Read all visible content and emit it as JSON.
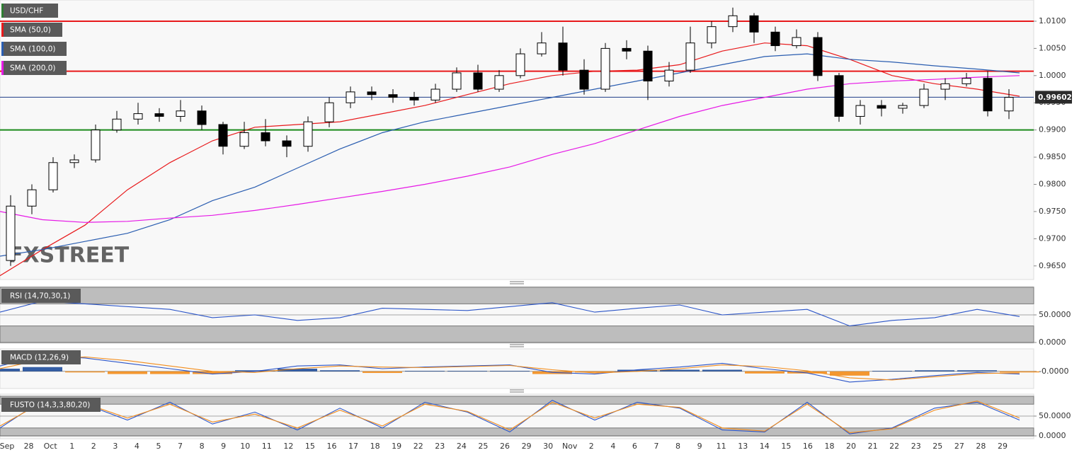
{
  "chart_data": [
    {
      "type": "candlestick",
      "watermark": "FXSTREET",
      "series": [
        {
          "name": "USD/CHF",
          "color": "#2e7d32",
          "open": [
            0.966,
            0.976,
            0.979,
            0.984,
            0.9845,
            0.99,
            0.992,
            0.993,
            0.9925,
            0.9935,
            0.991,
            0.987,
            0.9895,
            0.988,
            0.987,
            0.9915,
            0.995,
            0.997,
            0.9965,
            0.996,
            0.9955,
            0.9975,
            1.0005,
            0.9975,
            1.0,
            1.004,
            1.006,
            1.001,
            0.9975,
            1.005,
            1.0045,
            0.999,
            1.001,
            1.006,
            1.009,
            1.011,
            1.008,
            1.0055,
            1.007,
            1.0,
            0.9925,
            0.9945,
            0.994,
            0.9945,
            0.9975,
            0.9985,
            0.9995,
            0.9935
          ],
          "high": [
            0.978,
            0.98,
            0.985,
            0.9855,
            0.991,
            0.9935,
            0.995,
            0.994,
            0.9955,
            0.9945,
            0.9915,
            0.9915,
            0.992,
            0.989,
            0.9925,
            0.996,
            0.998,
            0.998,
            0.9975,
            0.997,
            0.9985,
            1.0015,
            1.002,
            1.001,
            1.005,
            1.008,
            1.009,
            1.003,
            1.006,
            1.0065,
            1.0055,
            1.0025,
            1.009,
            1.01,
            1.0125,
            1.0115,
            1.009,
            1.0085,
            1.008,
            1.0005,
            0.9955,
            0.9955,
            0.995,
            0.9985,
            0.9995,
            1.0005,
            1.0008,
            0.9975
          ],
          "low": [
            0.965,
            0.9745,
            0.9785,
            0.983,
            0.984,
            0.9895,
            0.991,
            0.9915,
            0.9915,
            0.99,
            0.9855,
            0.9865,
            0.987,
            0.985,
            0.986,
            0.9905,
            0.994,
            0.9955,
            0.995,
            0.9945,
            0.995,
            0.997,
            0.997,
            0.997,
            0.9995,
            1.0035,
            1.0,
            0.9965,
            0.997,
            1.003,
            0.9955,
            0.998,
            1.0005,
            1.005,
            1.008,
            1.006,
            1.0045,
            1.005,
            0.999,
            0.9915,
            0.991,
            0.9925,
            0.993,
            0.994,
            0.9955,
            0.998,
            0.9925,
            0.992
          ],
          "close": [
            0.976,
            0.979,
            0.984,
            0.9845,
            0.99,
            0.992,
            0.993,
            0.9925,
            0.9935,
            0.991,
            0.987,
            0.9895,
            0.988,
            0.987,
            0.9915,
            0.995,
            0.997,
            0.9965,
            0.996,
            0.9955,
            0.9975,
            1.0005,
            0.9975,
            1.0,
            1.004,
            1.006,
            1.001,
            0.9975,
            1.005,
            1.0045,
            0.999,
            1.001,
            1.006,
            1.009,
            1.011,
            1.008,
            1.0055,
            1.007,
            1.0,
            0.9925,
            0.9945,
            0.994,
            0.9945,
            0.9975,
            0.9985,
            0.9995,
            0.9935,
            0.996
          ]
        }
      ],
      "lines": [
        {
          "name": "SMA (50,0)",
          "color": "#e8191b",
          "values": [
            0.9632,
            0.968,
            0.9725,
            0.979,
            0.984,
            0.988,
            0.9905,
            0.991,
            0.9915,
            0.993,
            0.9945,
            0.9965,
            0.9985,
            1.0,
            1.0008,
            1.001,
            1.002,
            1.0045,
            1.006,
            1.0055,
            1.003,
            1.0,
            0.9985,
            0.9975,
            0.9962
          ]
        },
        {
          "name": "SMA (100,0)",
          "color": "#2a5db0",
          "values": [
            0.9668,
            0.968,
            0.9695,
            0.971,
            0.9735,
            0.977,
            0.9795,
            0.983,
            0.9865,
            0.9895,
            0.9915,
            0.993,
            0.9945,
            0.996,
            0.9975,
            0.999,
            1.0005,
            1.002,
            1.0035,
            1.004,
            1.003,
            1.0025,
            1.0018,
            1.0012,
            1.0005
          ]
        },
        {
          "name": "SMA (200,0)",
          "color": "#e619e6",
          "values": [
            0.975,
            0.9735,
            0.973,
            0.9732,
            0.9738,
            0.9743,
            0.9752,
            0.9763,
            0.9775,
            0.9787,
            0.98,
            0.9815,
            0.9832,
            0.9855,
            0.9875,
            0.99,
            0.9925,
            0.9945,
            0.996,
            0.9975,
            0.9985,
            0.999,
            0.9993,
            0.9997,
            1.0
          ]
        }
      ],
      "levels": [
        {
          "value": 1.01,
          "color": "#e8191b"
        },
        {
          "value": 1.0008,
          "color": "#e8191b"
        },
        {
          "value": 0.99,
          "color": "#1a8a1a"
        }
      ],
      "last_price": 0.99602,
      "last_price_color": "#1f3c88",
      "ylim": [
        0.9625,
        1.0139
      ],
      "yticks": [
        {
          "value": 1.01,
          "label": "1.0100"
        },
        {
          "value": 1.005,
          "label": "1.0050"
        },
        {
          "value": 1.0,
          "label": "1.0000"
        },
        {
          "value": 0.995,
          "label": "0.9950"
        },
        {
          "value": 0.99,
          "label": "0.9900"
        },
        {
          "value": 0.985,
          "label": "0.9850"
        },
        {
          "value": 0.98,
          "label": "0.9800"
        },
        {
          "value": 0.975,
          "label": "0.9750"
        },
        {
          "value": 0.97,
          "label": "0.9700"
        },
        {
          "value": 0.965,
          "label": "0.9650"
        }
      ]
    },
    {
      "type": "line",
      "title": "RSI (14,70,30,1)",
      "bands": [
        [
          70,
          100
        ],
        [
          0,
          30
        ]
      ],
      "series": [
        {
          "color": "#2a54c8",
          "values": [
            55,
            75,
            70,
            65,
            60,
            45,
            50,
            40,
            45,
            62,
            60,
            58,
            65,
            72,
            55,
            62,
            68,
            50,
            55,
            60,
            30,
            40,
            45,
            60,
            47
          ]
        }
      ],
      "ylim": [
        0,
        100
      ],
      "yticks": [
        {
          "value": 50,
          "label": "50.0000"
        },
        {
          "value": 0,
          "label": "0.0000"
        }
      ]
    },
    {
      "type": "line",
      "title": "MACD (12,26,9)",
      "series": [
        {
          "style": "histogram",
          "color": "#1f4e9c",
          "negative_color": "#f28c1a",
          "values": [
            0.0005,
            0.0008,
            -0.0002,
            -0.0005,
            -0.0005,
            -0.0005,
            0.0002,
            0.0005,
            0.0002,
            -0.0003,
            0.0001,
            0.0001,
            0.0001,
            -0.0005,
            -0.0002,
            0.0003,
            0.0003,
            0.0003,
            -0.0004,
            -0.0004,
            -0.0008,
            0.0001,
            0.0002,
            0.0002,
            -0.0002
          ]
        },
        {
          "color": "#2a54c8",
          "values": [
            0.001,
            0.003,
            0.0025,
            0.0015,
            0.0005,
            -0.0005,
            0.0,
            0.001,
            0.0012,
            0.0005,
            0.0008,
            0.001,
            0.0012,
            -0.0002,
            -0.0005,
            0.0003,
            0.0008,
            0.0015,
            0.0005,
            -0.0003,
            -0.002,
            -0.0015,
            -0.0008,
            -0.0002,
            -0.0005
          ]
        },
        {
          "color": "#f28c1a",
          "values": [
            0.0005,
            0.0022,
            0.0027,
            0.002,
            0.001,
            0.0,
            -0.0002,
            0.0005,
            0.001,
            0.0008,
            0.0007,
            0.0009,
            0.0011,
            0.0003,
            -0.0003,
            0.0,
            0.0005,
            0.0012,
            0.0009,
            0.0001,
            -0.0012,
            -0.0016,
            -0.001,
            -0.0004,
            -0.0003
          ]
        }
      ],
      "ylim": [
        -0.0032,
        0.0042
      ],
      "yticks": [
        {
          "value": 0,
          "label": "-0.0000"
        }
      ]
    },
    {
      "type": "line",
      "title": "FUSTO (14,3,3,80,20)",
      "bands": [
        [
          80,
          100
        ],
        [
          0,
          20
        ]
      ],
      "series": [
        {
          "color": "#2a54c8",
          "values": [
            20,
            90,
            80,
            40,
            85,
            30,
            60,
            15,
            70,
            20,
            85,
            60,
            10,
            90,
            40,
            85,
            70,
            15,
            10,
            85,
            5,
            20,
            70,
            85,
            40
          ]
        },
        {
          "color": "#f28c1a",
          "values": [
            25,
            85,
            82,
            45,
            80,
            35,
            55,
            20,
            65,
            25,
            80,
            62,
            15,
            85,
            45,
            80,
            72,
            20,
            12,
            80,
            8,
            18,
            65,
            88,
            45
          ]
        }
      ],
      "ylim": [
        0,
        100
      ],
      "yticks": [
        {
          "value": 50,
          "label": "50.0000"
        },
        {
          "value": 0,
          "label": "0.0000"
        }
      ]
    }
  ],
  "x_axis_labels": [
    "Sep",
    "28",
    "Oct",
    "1",
    "2",
    "3",
    "4",
    "5",
    "7",
    "8",
    "9",
    "10",
    "11",
    "12",
    "15",
    "16",
    "17",
    "18",
    "19",
    "22",
    "23",
    "24",
    "25",
    "26",
    "29",
    "30",
    "Nov",
    "2",
    "4",
    "6",
    "7",
    "8",
    "9",
    "11",
    "13",
    "14",
    "15",
    "16",
    "18",
    "20",
    "21",
    "22",
    "23",
    "25",
    "27",
    "28",
    "29"
  ]
}
